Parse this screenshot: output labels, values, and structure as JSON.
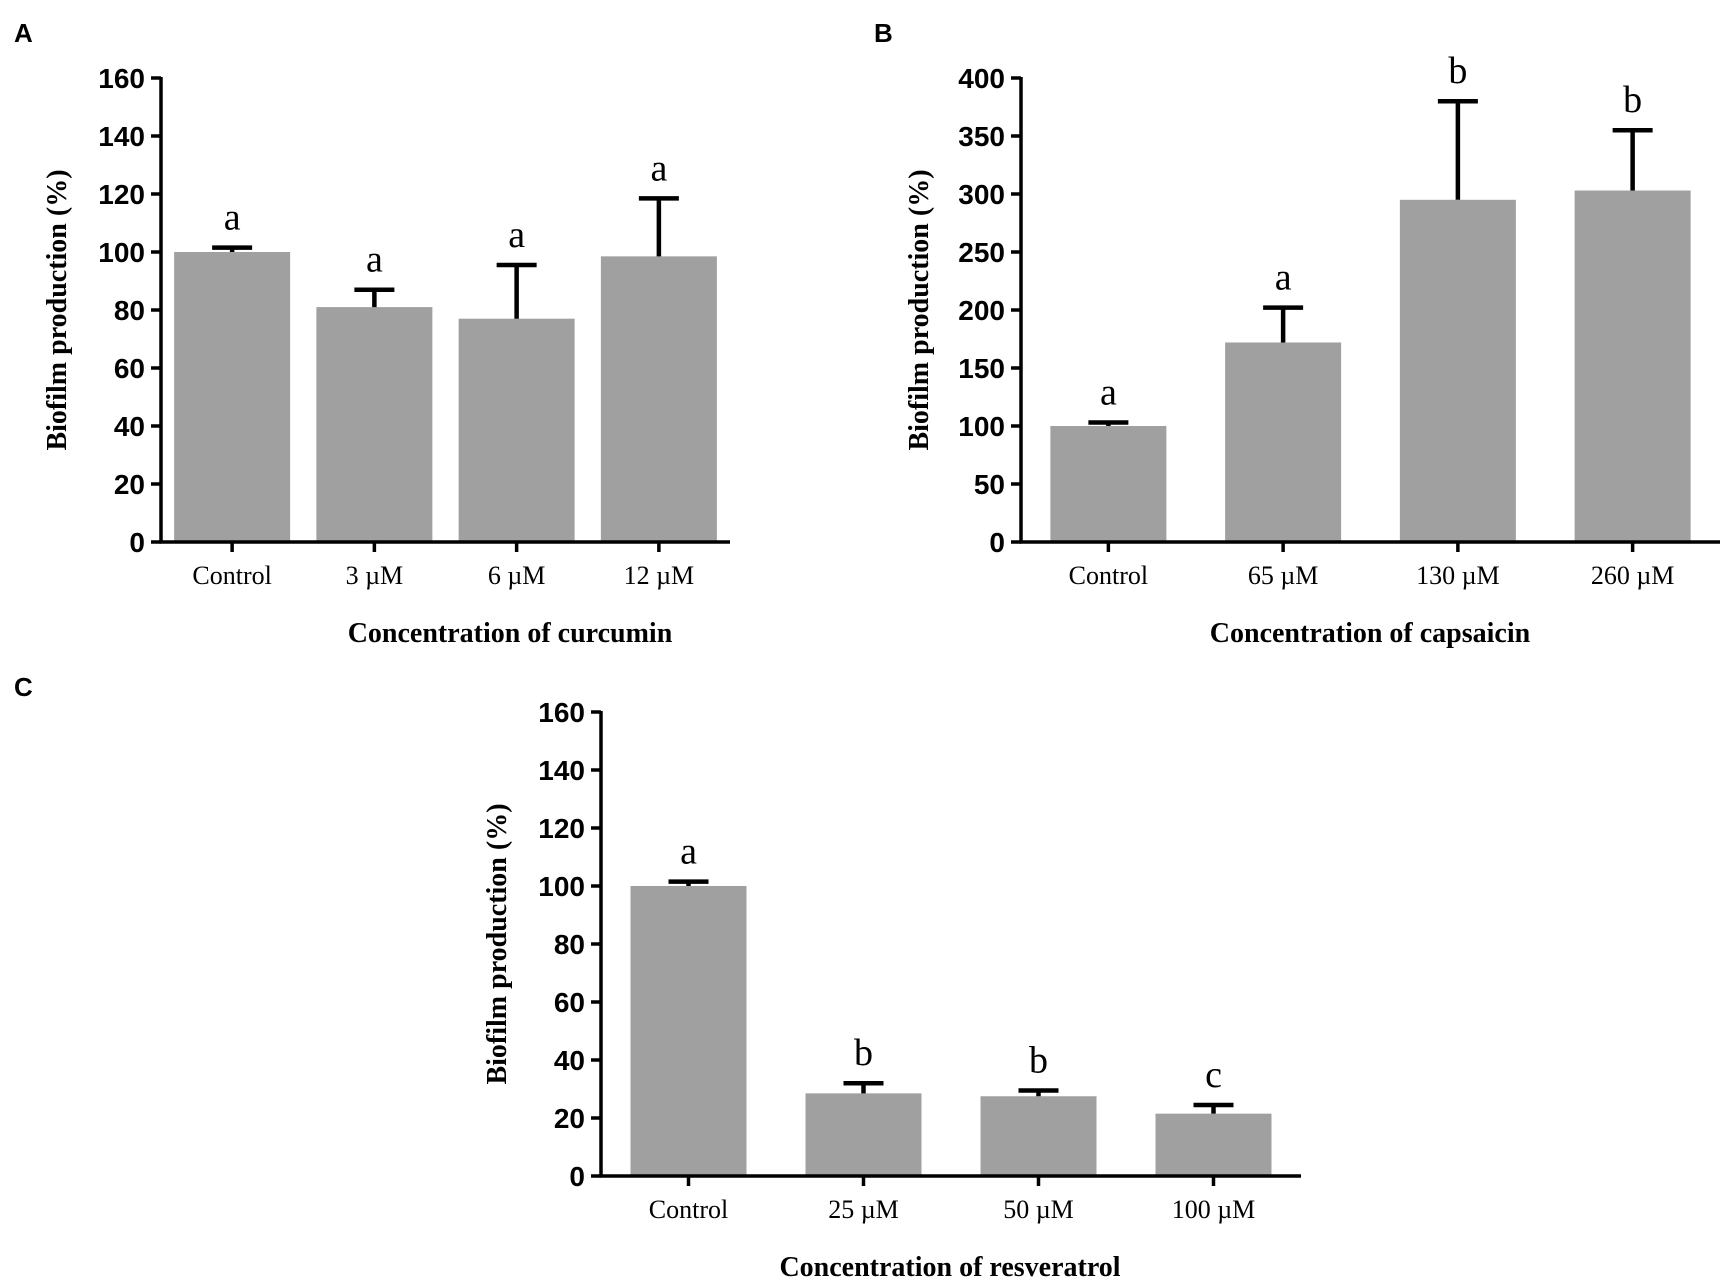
{
  "chart_data": [
    {
      "panel": "A",
      "type": "bar",
      "categories": [
        "Control",
        "3 µM",
        "6 µM",
        "12 µM"
      ],
      "values": [
        100,
        81,
        77,
        98.5
      ],
      "errors": [
        1.5,
        6,
        18.5,
        20
      ],
      "significance": [
        "a",
        "a",
        "a",
        "a"
      ],
      "xlabel": "Concentration of curcumin",
      "ylabel": "Biofilm production (%)",
      "ylim": [
        0,
        160
      ],
      "yticks": [
        0,
        20,
        40,
        60,
        80,
        100,
        120,
        140,
        160
      ],
      "bar_color": "#a0a0a0"
    },
    {
      "panel": "B",
      "type": "bar",
      "categories": [
        "Control",
        "65 µM",
        "130 µM",
        "260 µM"
      ],
      "values": [
        100,
        172,
        295,
        303
      ],
      "errors": [
        3,
        30,
        85,
        52
      ],
      "significance": [
        "a",
        "a",
        "b",
        "b"
      ],
      "xlabel": "Concentration of capsaicin",
      "ylabel": "Biofilm production (%)",
      "ylim": [
        0,
        400
      ],
      "yticks": [
        0,
        50,
        100,
        150,
        200,
        250,
        300,
        350,
        400
      ],
      "bar_color": "#a0a0a0"
    },
    {
      "panel": "C",
      "type": "bar",
      "categories": [
        "Control",
        "25 µM",
        "50 µM",
        "100 µM"
      ],
      "values": [
        100,
        28.5,
        27.5,
        21.5
      ],
      "errors": [
        1.5,
        3.5,
        2,
        3
      ],
      "significance": [
        "a",
        "b",
        "b",
        "c"
      ],
      "xlabel": "Concentration of resveratrol",
      "ylabel": "Biofilm production (%)",
      "ylim": [
        0,
        160
      ],
      "yticks": [
        0,
        20,
        40,
        60,
        80,
        100,
        120,
        140,
        160
      ],
      "bar_color": "#a0a0a0"
    }
  ]
}
